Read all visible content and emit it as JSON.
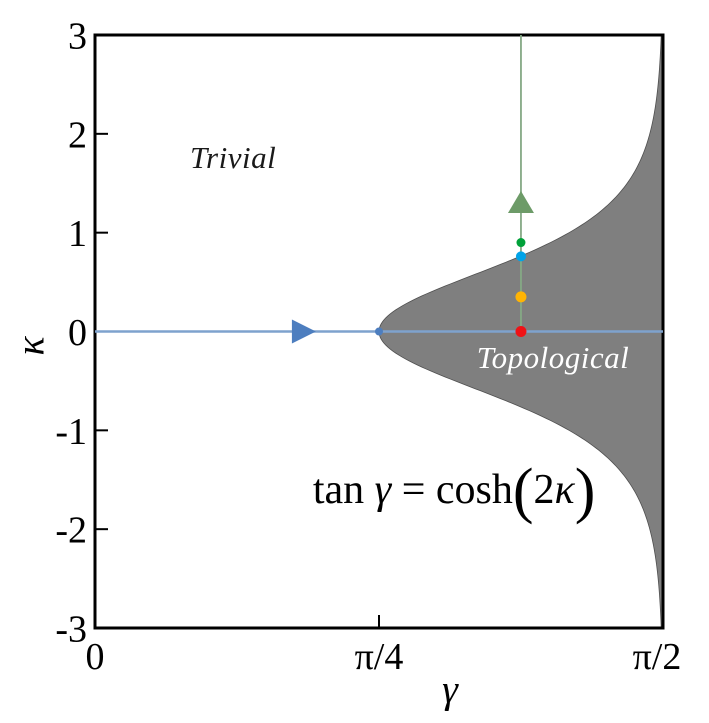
{
  "figure": {
    "background_color": "#ffffff",
    "frame_color": "#000000",
    "tick_label_color": "#000000"
  },
  "chart_data": {
    "type": "area",
    "title": "",
    "xlabel": "γ",
    "ylabel": "κ",
    "xlim": [
      0,
      1.5708
    ],
    "ylim": [
      -3,
      3
    ],
    "grid": false,
    "legend": "none",
    "x_ticks": [
      {
        "value": 0,
        "label": "0",
        "dx": 0
      },
      {
        "value": 0.7854,
        "label": "π/4",
        "dx": 0
      },
      {
        "value": 1.5708,
        "label": "π/2",
        "dx": -6
      }
    ],
    "y_ticks": [
      {
        "value": 3,
        "label": "3"
      },
      {
        "value": 2,
        "label": "2"
      },
      {
        "value": 1,
        "label": "1"
      },
      {
        "value": 0,
        "label": "0"
      },
      {
        "value": -1,
        "label": "-1"
      },
      {
        "value": -2,
        "label": "-2"
      },
      {
        "value": -3,
        "label": "-3"
      }
    ],
    "boundary": {
      "formula": "tan(gamma) = cosh(2*kappa)",
      "region": "gamma >= arctan(cosh(2*kappa))",
      "fill_color": "#7f7f7f",
      "edge_color": "#4f4f4f",
      "tip": {
        "gamma": 0.7854,
        "kappa": 0
      }
    },
    "regions": [
      {
        "label": "Trivial",
        "pos": {
          "gamma": 0.382,
          "kappa": 1.755
        },
        "color": "#1a1a1a"
      },
      {
        "label": "Topological",
        "pos": {
          "gamma": 1.2665,
          "kappa": -0.268
        },
        "color": "#ffffff"
      }
    ],
    "lines": [
      {
        "name": "kappa-zero-sweep",
        "color": "#7ea2cd",
        "width": 2.6,
        "from": {
          "gamma": 0,
          "kappa": 0
        },
        "to": {
          "gamma": 1.5708,
          "kappa": 0
        },
        "arrow": {
          "gamma": 0.575,
          "kappa": 0,
          "dir": "right",
          "color": "#4d7ebf"
        }
      },
      {
        "name": "gamma-3pi-8-sweep",
        "color": "#85a985",
        "width": 1.8,
        "from": {
          "gamma": 1.178,
          "kappa": 0
        },
        "to": {
          "gamma": 1.178,
          "kappa": 3
        },
        "arrow": {
          "gamma": 1.178,
          "kappa": 1.3,
          "dir": "up",
          "color": "#6d9b68"
        }
      }
    ],
    "markers": [
      {
        "name": "boundary-tip-dot",
        "gamma": 0.7854,
        "kappa": 0,
        "color": "#4d7ebf",
        "r": 4
      },
      {
        "name": "green-dot",
        "gamma": 1.178,
        "kappa": 0.9,
        "color": "#00a139",
        "r": 4.5
      },
      {
        "name": "azure-dot",
        "gamma": 1.178,
        "kappa": 0.76,
        "color": "#00a3e8",
        "r": 5
      },
      {
        "name": "orange-dot",
        "gamma": 1.178,
        "kappa": 0.35,
        "color": "#ffb404",
        "r": 5.5
      },
      {
        "name": "red-dot",
        "gamma": 1.178,
        "kappa": 0,
        "color": "#ef1216",
        "r": 5.5
      }
    ],
    "equation": {
      "parts": [
        "tan ",
        "γ",
        " = cosh",
        "(",
        "2",
        "κ",
        ")"
      ],
      "pos": {
        "gamma": 0.935,
        "kappa": -1.6
      }
    }
  }
}
